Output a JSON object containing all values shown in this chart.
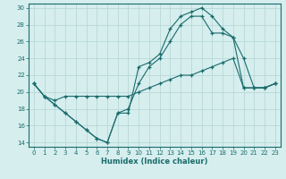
{
  "xlabel": "Humidex (Indice chaleur)",
  "background_color": "#d6eeee",
  "grid_color": "#c8e0e0",
  "line_color": "#1a6b6b",
  "xlim": [
    -0.5,
    23.5
  ],
  "ylim": [
    13.5,
    30.5
  ],
  "xticks": [
    0,
    1,
    2,
    3,
    4,
    5,
    6,
    7,
    8,
    9,
    10,
    11,
    12,
    13,
    14,
    15,
    16,
    17,
    18,
    19,
    20,
    21,
    22,
    23
  ],
  "yticks": [
    14,
    16,
    18,
    20,
    22,
    24,
    26,
    28,
    30
  ],
  "line1_x": [
    0,
    1,
    2,
    3,
    4,
    5,
    6,
    7,
    8,
    9,
    10,
    11,
    12,
    13,
    14,
    15,
    16,
    17,
    18,
    19,
    20,
    21,
    22,
    23
  ],
  "line1_y": [
    21,
    19.5,
    18.5,
    17.5,
    16.5,
    15.5,
    14.5,
    14,
    17.5,
    17.5,
    23,
    23.5,
    24.5,
    27.5,
    29,
    29.5,
    30,
    29,
    27.5,
    26.5,
    24,
    20.5,
    20.5,
    21
  ],
  "line2_x": [
    0,
    1,
    2,
    3,
    4,
    5,
    6,
    7,
    8,
    9,
    10,
    11,
    12,
    13,
    14,
    15,
    16,
    17,
    18,
    19,
    20,
    21,
    22,
    23
  ],
  "line2_y": [
    21,
    19.5,
    18.5,
    17.5,
    16.5,
    15.5,
    14.5,
    14,
    17.5,
    18,
    21,
    23,
    24,
    26,
    28,
    29,
    29,
    27,
    27,
    26.5,
    20.5,
    20.5,
    20.5,
    21
  ],
  "line3_x": [
    0,
    1,
    2,
    3,
    4,
    5,
    6,
    7,
    8,
    9,
    10,
    11,
    12,
    13,
    14,
    15,
    16,
    17,
    18,
    19,
    20,
    21,
    22,
    23
  ],
  "line3_y": [
    21,
    19.5,
    19,
    19.5,
    19.5,
    19.5,
    19.5,
    19.5,
    19.5,
    19.5,
    20,
    20.5,
    21,
    21.5,
    22,
    22,
    22.5,
    23,
    23.5,
    24,
    20.5,
    20.5,
    20.5,
    21
  ]
}
